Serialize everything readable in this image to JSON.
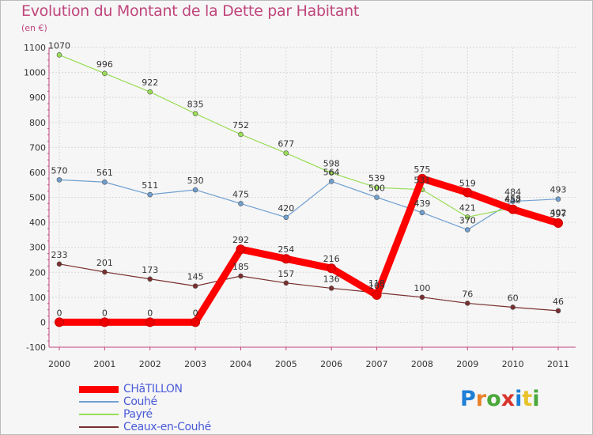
{
  "title": "Evolution du Montant de la Dette par Habitant",
  "subtitle": "(en €)",
  "logo_text": "Proxiti",
  "chart_data": {
    "type": "line",
    "x": [
      "2000",
      "2001",
      "2002",
      "2003",
      "2004",
      "2005",
      "2006",
      "2007",
      "2008",
      "2009",
      "2010",
      "2011"
    ],
    "yticks": [
      "-100",
      "0",
      "100",
      "200",
      "300",
      "400",
      "500",
      "600",
      "700",
      "800",
      "900",
      "1000",
      "1100"
    ],
    "ylim": [
      -100,
      1100
    ],
    "grid": true,
    "legend_position": "bottom-left",
    "series": [
      {
        "name": "CHâTILLON",
        "color": "#ff0000",
        "values": [
          0,
          0,
          0,
          0,
          292,
          254,
          216,
          109,
          575,
          519,
          452,
          397
        ],
        "labels": [
          "0",
          "0",
          "0",
          "0",
          "292",
          "254",
          "216",
          "109",
          "575",
          "519",
          "452",
          "397"
        ]
      },
      {
        "name": "Couhé",
        "color": "#6f9fd0",
        "values": [
          570,
          561,
          511,
          530,
          475,
          420,
          564,
          500,
          439,
          370,
          484,
          493
        ],
        "labels": [
          "570",
          "561",
          "511",
          "530",
          "475",
          "420",
          "564",
          "500",
          "439",
          "370",
          "484",
          "493"
        ]
      },
      {
        "name": "Payré",
        "color": "#99dd55",
        "values": [
          1070,
          996,
          922,
          835,
          752,
          677,
          598,
          539,
          531,
          421,
          458,
          402
        ],
        "labels": [
          "1070",
          "996",
          "922",
          "835",
          "752",
          "677",
          "598",
          "539",
          "531",
          "421",
          "458",
          "402"
        ]
      },
      {
        "name": "Ceaux-en-Couhé",
        "color": "#7a2f2f",
        "values": [
          233,
          201,
          173,
          145,
          185,
          157,
          136,
          118,
          100,
          76,
          60,
          46
        ],
        "labels": [
          "233",
          "201",
          "173",
          "145",
          "185",
          "157",
          "136",
          "118",
          "100",
          "76",
          "60",
          "46"
        ]
      }
    ]
  },
  "colors": {
    "title": "#c0467c",
    "legend_text": "#4a5bd8"
  }
}
